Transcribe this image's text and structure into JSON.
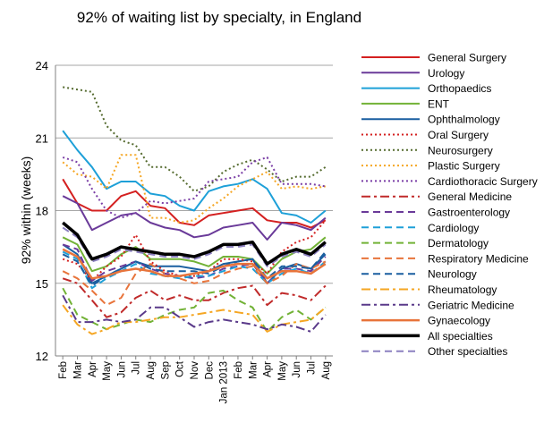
{
  "chart_data": {
    "type": "line",
    "title": "92% of waiting list by specialty, in England",
    "ylabel": "92% within (weeks)",
    "xlabel": "",
    "ylim": [
      12,
      24
    ],
    "yticks": [
      12,
      15,
      18,
      21,
      24
    ],
    "grid": true,
    "legend_position": "right",
    "categories": [
      "Feb",
      "Mar",
      "Apr",
      "May",
      "Jun",
      "Jul",
      "Aug",
      "Sep",
      "Oct",
      "Nov",
      "Dec",
      "Jan 2013",
      "Feb",
      "Mar",
      "Apr",
      "May",
      "Jun",
      "Jul",
      "Aug"
    ],
    "series": [
      {
        "name": "General Surgery",
        "color": "#d42020",
        "dash": "solid",
        "width": 2,
        "values": [
          19.3,
          18.3,
          18.0,
          18.0,
          18.6,
          18.8,
          18.2,
          18.1,
          17.5,
          17.4,
          17.8,
          17.9,
          18.0,
          18.1,
          17.6,
          17.5,
          17.5,
          17.3,
          17.6
        ]
      },
      {
        "name": "Urology",
        "color": "#6a3a99",
        "dash": "solid",
        "width": 2,
        "values": [
          18.6,
          18.3,
          17.2,
          17.5,
          17.8,
          17.9,
          17.5,
          17.3,
          17.2,
          16.9,
          17.0,
          17.3,
          17.4,
          17.5,
          16.8,
          17.5,
          17.4,
          17.2,
          17.7
        ]
      },
      {
        "name": "Orthopaedics",
        "color": "#1ea0d8",
        "dash": "solid",
        "width": 2,
        "values": [
          21.3,
          20.5,
          19.8,
          18.9,
          19.2,
          19.2,
          18.7,
          18.6,
          18.2,
          18.0,
          18.8,
          19.0,
          19.1,
          19.3,
          18.9,
          17.9,
          17.8,
          17.5,
          18.0
        ]
      },
      {
        "name": "ENT",
        "color": "#72b236",
        "dash": "solid",
        "width": 2,
        "values": [
          16.9,
          16.6,
          15.5,
          15.7,
          16.2,
          16.5,
          16.0,
          16.0,
          16.0,
          15.9,
          15.7,
          16.1,
          16.1,
          16.0,
          15.4,
          16.0,
          16.3,
          16.4,
          16.9
        ]
      },
      {
        "name": "Ophthalmology",
        "color": "#1a5fa0",
        "dash": "solid",
        "width": 2,
        "values": [
          16.6,
          16.2,
          15.0,
          15.3,
          15.6,
          15.9,
          15.7,
          15.7,
          15.7,
          15.6,
          15.5,
          15.8,
          15.9,
          16.0,
          15.0,
          15.6,
          15.8,
          15.6,
          16.2
        ]
      },
      {
        "name": "Oral Surgery",
        "color": "#d42020",
        "dash": "dot",
        "width": 2,
        "values": [
          16.0,
          15.8,
          15.1,
          15.7,
          16.1,
          17.0,
          15.9,
          15.5,
          15.3,
          15.3,
          15.5,
          16.0,
          16.0,
          15.9,
          15.4,
          16.3,
          16.7,
          16.9,
          17.6
        ]
      },
      {
        "name": "Neurosurgery",
        "color": "#556b2f",
        "dash": "dot",
        "width": 2,
        "values": [
          23.1,
          23.0,
          22.9,
          21.5,
          20.9,
          20.7,
          19.8,
          19.8,
          19.4,
          18.8,
          19.0,
          19.6,
          19.9,
          20.1,
          19.7,
          19.2,
          19.4,
          19.4,
          19.8
        ]
      },
      {
        "name": "Plastic Surgery",
        "color": "#f5a623",
        "dash": "dot",
        "width": 2,
        "values": [
          20.0,
          19.5,
          19.4,
          18.9,
          20.3,
          20.3,
          17.7,
          17.7,
          17.5,
          17.6,
          18.1,
          18.5,
          19.0,
          19.3,
          19.6,
          18.9,
          19.0,
          18.9,
          19.0
        ]
      },
      {
        "name": "Cardiothoracic Surgery",
        "color": "#7b3fa6",
        "dash": "dot",
        "width": 2,
        "values": [
          20.2,
          20.0,
          18.9,
          18.0,
          17.7,
          17.9,
          18.4,
          18.3,
          18.4,
          18.5,
          19.2,
          19.3,
          19.4,
          20.0,
          20.2,
          19.1,
          19.1,
          19.1,
          19.0
        ]
      },
      {
        "name": "General Medicine",
        "color": "#c02a2a",
        "dash": "dashdot",
        "width": 2,
        "values": [
          15.2,
          15.0,
          14.3,
          13.6,
          13.8,
          14.4,
          14.7,
          14.3,
          14.5,
          14.3,
          14.3,
          14.6,
          14.8,
          14.9,
          14.1,
          14.6,
          14.5,
          14.3,
          14.9
        ]
      },
      {
        "name": "Gastroenterology",
        "color": "#6a3a99",
        "dash": "dash",
        "width": 2,
        "values": [
          16.6,
          16.4,
          15.1,
          15.5,
          15.7,
          15.9,
          15.6,
          15.4,
          15.3,
          15.2,
          15.3,
          15.6,
          15.7,
          15.8,
          15.0,
          15.6,
          15.6,
          15.5,
          16.1
        ]
      },
      {
        "name": "Cardiology",
        "color": "#1ea0d8",
        "dash": "dash",
        "width": 2,
        "values": [
          16.3,
          16.0,
          14.8,
          15.2,
          15.5,
          15.8,
          15.4,
          15.3,
          15.2,
          15.3,
          15.3,
          15.5,
          15.7,
          15.6,
          15.0,
          15.4,
          15.6,
          15.4,
          15.9
        ]
      },
      {
        "name": "Dermatology",
        "color": "#72b236",
        "dash": "dash",
        "width": 2,
        "values": [
          14.8,
          13.7,
          13.4,
          13.1,
          13.3,
          13.5,
          13.4,
          13.7,
          13.9,
          14.0,
          14.6,
          14.7,
          14.3,
          14.0,
          13.0,
          13.6,
          13.9,
          13.5,
          14.0
        ]
      },
      {
        "name": "Respiratory Medicine",
        "color": "#e8743b",
        "dash": "dash",
        "width": 2,
        "values": [
          15.5,
          15.2,
          14.7,
          14.1,
          14.4,
          15.4,
          15.8,
          15.4,
          15.2,
          15.0,
          15.1,
          15.4,
          15.6,
          15.7,
          15.0,
          15.3,
          15.8,
          15.6,
          15.9
        ]
      },
      {
        "name": "Neurology",
        "color": "#1a5fa0",
        "dash": "dash",
        "width": 2,
        "values": [
          16.2,
          15.9,
          14.9,
          15.3,
          15.6,
          15.9,
          15.6,
          15.5,
          15.5,
          15.5,
          15.4,
          15.7,
          15.9,
          16.0,
          15.2,
          15.7,
          15.7,
          15.6,
          16.3
        ]
      },
      {
        "name": "Rheumatology",
        "color": "#f5a623",
        "dash": "dashdot",
        "width": 2,
        "values": [
          14.1,
          13.3,
          12.9,
          13.1,
          13.4,
          13.4,
          13.5,
          13.6,
          13.6,
          13.7,
          13.8,
          13.9,
          13.8,
          13.7,
          13.0,
          13.3,
          13.4,
          13.5,
          14.0
        ]
      },
      {
        "name": "Geriatric Medicine",
        "color": "#5a3a8a",
        "dash": "dashdot",
        "width": 2,
        "values": [
          14.5,
          13.4,
          13.4,
          13.5,
          13.4,
          13.5,
          14.0,
          14.0,
          13.6,
          13.2,
          13.4,
          13.5,
          13.4,
          13.3,
          13.1,
          13.3,
          13.2,
          13.0,
          13.7
        ]
      },
      {
        "name": "Gynaecology",
        "color": "#e8743b",
        "dash": "solid",
        "width": 2.5,
        "values": [
          16.4,
          16.1,
          15.2,
          15.3,
          15.5,
          15.6,
          15.5,
          15.3,
          15.3,
          15.4,
          15.5,
          15.7,
          15.8,
          15.8,
          15.2,
          15.5,
          15.5,
          15.4,
          15.8
        ]
      },
      {
        "name": "All specialties",
        "color": "#000000",
        "dash": "solid",
        "width": 3.5,
        "values": [
          17.5,
          17.0,
          16.0,
          16.2,
          16.5,
          16.4,
          16.3,
          16.2,
          16.2,
          16.1,
          16.3,
          16.6,
          16.6,
          16.7,
          15.8,
          16.2,
          16.4,
          16.2,
          16.7
        ]
      },
      {
        "name": "Other specialties",
        "color": "#8c80c0",
        "dash": "dash",
        "width": 2,
        "values": [
          17.3,
          16.9,
          15.9,
          16.1,
          16.4,
          16.3,
          16.2,
          16.1,
          16.1,
          16.0,
          16.2,
          16.5,
          16.5,
          16.6,
          15.7,
          16.1,
          16.3,
          16.1,
          16.6
        ]
      }
    ]
  }
}
